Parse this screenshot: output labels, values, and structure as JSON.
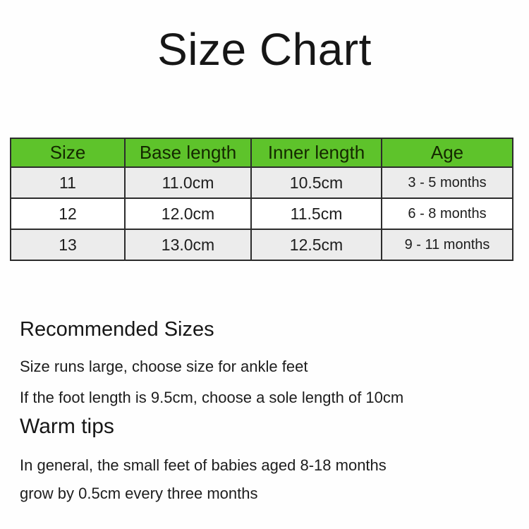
{
  "page": {
    "title": "Size Chart",
    "background_color": "#fefefe",
    "text_color": "#1d1d1d"
  },
  "table": {
    "headers": [
      "Size",
      "Base length",
      "Inner length",
      "Age"
    ],
    "rows": [
      [
        "11",
        "11.0cm",
        "10.5cm",
        "3 - 5 months"
      ],
      [
        "12",
        "12.0cm",
        "11.5cm",
        "6 - 8 months"
      ],
      [
        "13",
        "13.0cm",
        "12.5cm",
        "9 - 11 months"
      ]
    ],
    "header_bg_color": "#5ec32b",
    "alt_row_bg_color": "#ececec",
    "row_bg_color": "#ffffff",
    "border_color": "#2c2c2c"
  },
  "sections": [
    {
      "heading": "Recommended Sizes",
      "lines": [
        "Size runs large, choose size for ankle feet",
        "If the foot length is 9.5cm, choose a sole length of 10cm"
      ]
    },
    {
      "heading": "Warm tips",
      "lines": [
        "In general, the small feet of babies aged 8-18 months",
        "grow by 0.5cm every three months"
      ]
    }
  ]
}
